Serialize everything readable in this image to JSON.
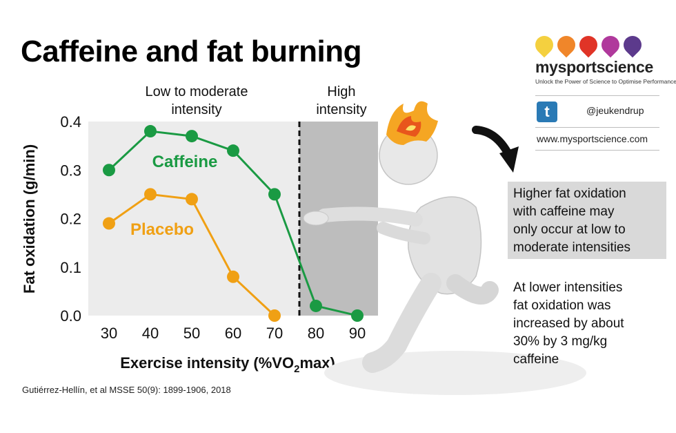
{
  "title": "Caffeine and fat burning",
  "zones": {
    "low_moderate": [
      "Low to moderate",
      "intensity"
    ],
    "high": [
      "High",
      "intensity"
    ]
  },
  "brand": {
    "dot_colors": [
      "#f4d03f",
      "#f0862a",
      "#e03427",
      "#b0399c",
      "#5c3a8c"
    ],
    "name": "mysportscience",
    "tagline": "Unlock the Power of Science to Optimise Performance",
    "twitter_icon": "twitter-icon",
    "twitter_handle": "@jeukendrup",
    "website": "www.mysportscience.com"
  },
  "callout": {
    "boxed": [
      "Higher fat oxidation",
      "with caffeine may",
      "only occur at low to",
      "moderate intensities"
    ],
    "plain": [
      "At lower intensities",
      "fat oxidation was",
      "increased by about",
      "30% by 3 mg/kg",
      "caffeine"
    ]
  },
  "citation": "Gutiérrez-Hellín, et al MSSE 50(9): 1899-1906, 2018",
  "watermark": "mysportscience",
  "chart_data": {
    "type": "line",
    "x": [
      30,
      40,
      50,
      60,
      70,
      80,
      90
    ],
    "xlim": [
      25,
      95
    ],
    "ylim": [
      0,
      0.4
    ],
    "yticks": [
      "0.0",
      "0.1",
      "0.2",
      "0.3",
      "0.4"
    ],
    "xlabel_parts": [
      "Exercise intensity (%VO",
      "2",
      "max)"
    ],
    "ylabel": "Fat oxidation (g/min)",
    "threshold_x": 76,
    "series": [
      {
        "name": "Caffeine",
        "color": "#1a9a43",
        "x": [
          30,
          40,
          50,
          60,
          70,
          80,
          90
        ],
        "values": [
          0.3,
          0.38,
          0.37,
          0.34,
          0.25,
          0.02,
          0.0
        ]
      },
      {
        "name": "Placebo",
        "color": "#f0a014",
        "x": [
          30,
          40,
          50,
          60,
          70
        ],
        "values": [
          0.19,
          0.25,
          0.24,
          0.08,
          0.0
        ]
      }
    ]
  }
}
